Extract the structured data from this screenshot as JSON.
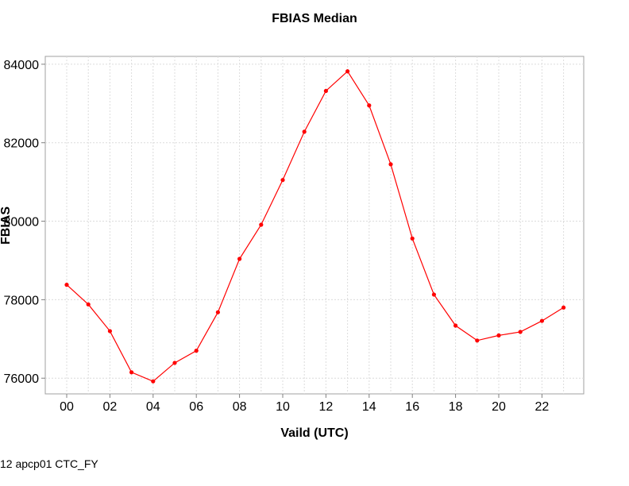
{
  "chart_data": {
    "type": "line",
    "title": "FBIAS Median",
    "xlabel": "Vaild (UTC)",
    "ylabel": "FBIAS",
    "x": [
      "00",
      "01",
      "02",
      "03",
      "04",
      "05",
      "06",
      "07",
      "08",
      "09",
      "10",
      "11",
      "12",
      "13",
      "14",
      "15",
      "16",
      "17",
      "18",
      "19",
      "20",
      "21",
      "22",
      "23"
    ],
    "xtick_labels": [
      "00",
      "02",
      "04",
      "06",
      "08",
      "10",
      "12",
      "14",
      "16",
      "18",
      "20",
      "22"
    ],
    "ytick_labels": [
      "76000",
      "78000",
      "80000",
      "82000",
      "84000"
    ],
    "yticks": [
      76000,
      78000,
      80000,
      82000,
      84000
    ],
    "ylim": [
      75600,
      84200
    ],
    "grid": true,
    "series": [
      {
        "color": "#ff0000",
        "values": [
          78380,
          77880,
          77200,
          76150,
          75920,
          76390,
          76700,
          77680,
          79040,
          79910,
          81050,
          82280,
          83320,
          83820,
          82950,
          81450,
          79560,
          78130,
          77340,
          76960,
          77090,
          77180,
          77460,
          77800
        ]
      }
    ]
  },
  "footer": {
    "text": "12 apcp01 CTC_FY"
  }
}
